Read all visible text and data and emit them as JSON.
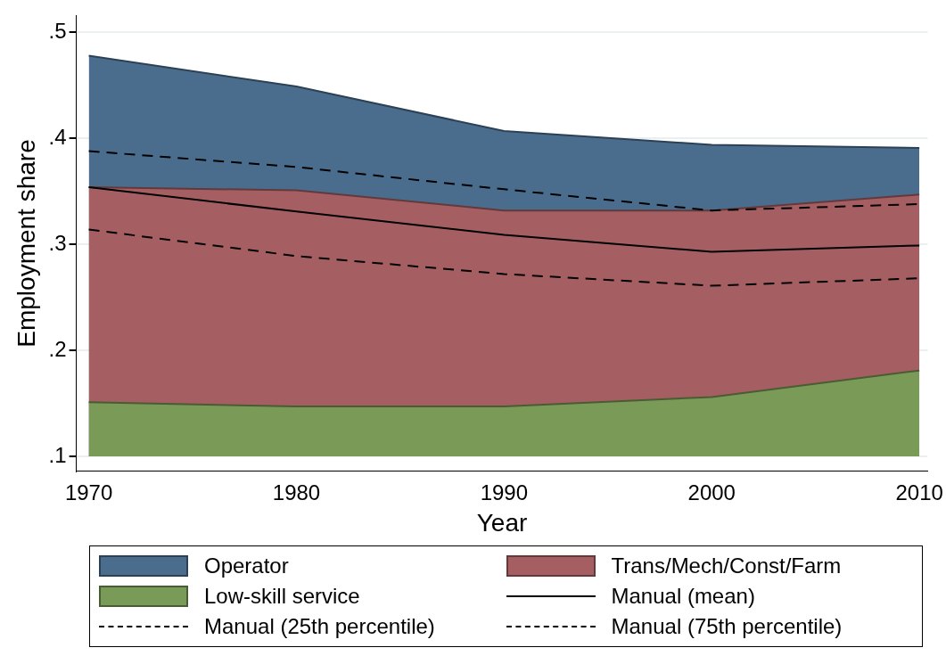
{
  "chart_data": {
    "type": "area",
    "xlabel": "Year",
    "ylabel": "Employment share",
    "x": [
      1970,
      1980,
      1990,
      2000,
      2010
    ],
    "xlim": [
      1969.4,
      2010.4
    ],
    "xticks": [
      1970,
      1980,
      1990,
      2000,
      2010
    ],
    "ylim": [
      0.086,
      0.516
    ],
    "yticks": [
      {
        "value": 0.1,
        "label": ".1"
      },
      {
        "value": 0.2,
        "label": ".2"
      },
      {
        "value": 0.3,
        "label": ".3"
      },
      {
        "value": 0.4,
        "label": ".4"
      },
      {
        "value": 0.5,
        "label": ".5"
      }
    ],
    "grid": "y",
    "legend": "bottom",
    "series": [
      {
        "name": "Operator",
        "color": "#4a6d8e",
        "values": [
          0.478,
          0.449,
          0.407,
          0.394,
          0.391
        ]
      },
      {
        "name": "Trans/Mech/Const/Farm",
        "color": "#a55f62",
        "values": [
          0.354,
          0.351,
          0.332,
          0.332,
          0.347
        ]
      },
      {
        "name": "Low-skill service",
        "color": "#7a9a57",
        "values": [
          0.151,
          0.147,
          0.147,
          0.156,
          0.181
        ]
      },
      {
        "name": "Manual (mean)",
        "type": "line",
        "color": "#000000",
        "line_style": "solid",
        "values": [
          0.354,
          0.331,
          0.309,
          0.293,
          0.299
        ]
      },
      {
        "name": "Manual (25th percentile)",
        "type": "line",
        "color": "#000000",
        "line_style": "dashed",
        "values": [
          0.314,
          0.289,
          0.272,
          0.261,
          0.268
        ]
      },
      {
        "name": "Manual (75th percentile)",
        "type": "line",
        "color": "#000000",
        "line_style": "dashed",
        "values": [
          0.388,
          0.373,
          0.352,
          0.332,
          0.338
        ]
      }
    ]
  }
}
